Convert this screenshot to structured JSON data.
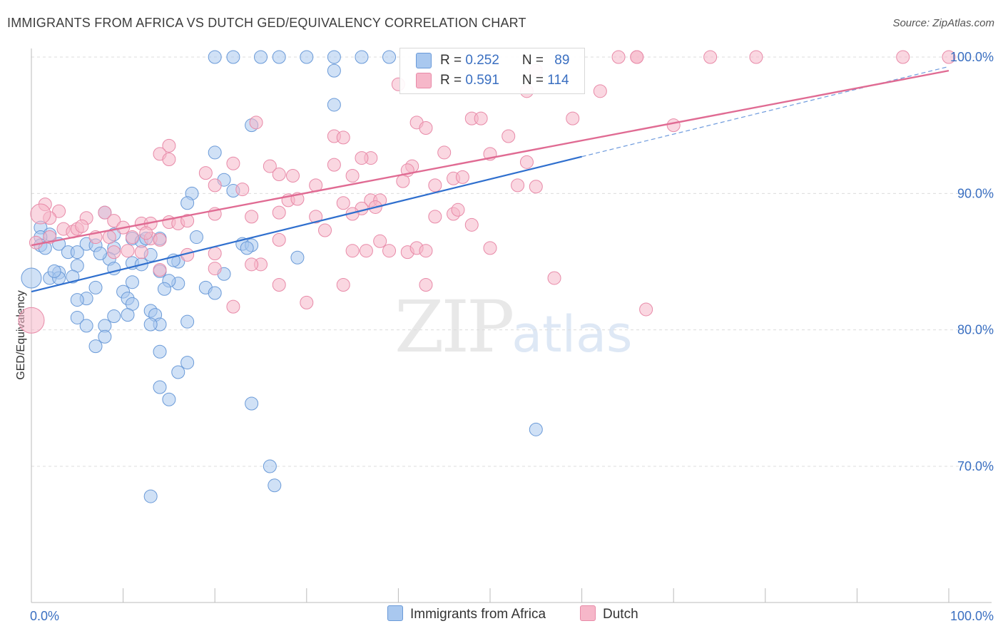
{
  "header": {
    "title": "IMMIGRANTS FROM AFRICA VS DUTCH GED/EQUIVALENCY CORRELATION CHART",
    "source": "Source: ZipAtlas.com"
  },
  "watermark": {
    "zip": "ZIP",
    "atlas": "atlas"
  },
  "legend": {
    "rows": [
      {
        "r_label": "R = ",
        "r_value": "0.252",
        "n_label": "N = ",
        "n_value": "89"
      },
      {
        "r_label": "R = ",
        "r_value": "0.591",
        "n_label": "N = ",
        "n_value": "114"
      }
    ]
  },
  "bottom_legend": {
    "items": [
      {
        "label": "Immigrants from Africa"
      },
      {
        "label": "Dutch"
      }
    ]
  },
  "colors": {
    "blue_fill": "#a9c8ef",
    "blue_stroke": "#6a9ad8",
    "blue_line": "#2f6fce",
    "pink_fill": "#f6b7c9",
    "pink_stroke": "#e88aa8",
    "pink_line": "#e06b93",
    "tick_label": "#3a6fc1",
    "grid": "#dcdcdc"
  },
  "chart_data": {
    "type": "scatter",
    "title": "IMMIGRANTS FROM AFRICA VS DUTCH GED/EQUIVALENCY CORRELATION CHART",
    "xlabel": "",
    "ylabel": "GED/Equivalency",
    "xlim": [
      0,
      100
    ],
    "ylim": [
      61,
      101
    ],
    "x_tick_labels": [
      "0.0%",
      "100.0%"
    ],
    "y_ticks": [
      70,
      80,
      90,
      100
    ],
    "y_tick_labels": [
      "70.0%",
      "80.0%",
      "90.0%",
      "100.0%"
    ],
    "grid": "horizontal dashed",
    "legend_position": "top-center",
    "series": [
      {
        "name": "Immigrants from Africa",
        "r": 0.252,
        "n": 89,
        "trend": {
          "x0": 0,
          "y0": 82.8,
          "x1": 60,
          "y1": 92.7,
          "dashed_to_x": 100,
          "dashed_to_y": 99.3
        },
        "points": [
          [
            20,
            100
          ],
          [
            22,
            100
          ],
          [
            25,
            100
          ],
          [
            30,
            100
          ],
          [
            33,
            100
          ],
          [
            36,
            100
          ],
          [
            39,
            100
          ],
          [
            27,
            100
          ],
          [
            33,
            99
          ],
          [
            33,
            96.5
          ],
          [
            24,
            95
          ],
          [
            20,
            93
          ],
          [
            21,
            91
          ],
          [
            22,
            90.2
          ],
          [
            17.5,
            90
          ],
          [
            17,
            89.3
          ],
          [
            8,
            88.6
          ],
          [
            1,
            87.5
          ],
          [
            2,
            87
          ],
          [
            1,
            86.8
          ],
          [
            9,
            87
          ],
          [
            11,
            86.7
          ],
          [
            12,
            86.5
          ],
          [
            14,
            86.7
          ],
          [
            3,
            86.3
          ],
          [
            6,
            86.3
          ],
          [
            1,
            86.2
          ],
          [
            4,
            85.7
          ],
          [
            5,
            85.7
          ],
          [
            7,
            86.2
          ],
          [
            9,
            86
          ],
          [
            13,
            85.5
          ],
          [
            8.5,
            85.2
          ],
          [
            16,
            85
          ],
          [
            23,
            86.3
          ],
          [
            24,
            86.2
          ],
          [
            29,
            85.3
          ],
          [
            11,
            84.9
          ],
          [
            12,
            84.8
          ],
          [
            5,
            84.7
          ],
          [
            9,
            84.5
          ],
          [
            14,
            84.3
          ],
          [
            3,
            84.2
          ],
          [
            2,
            83.8
          ],
          [
            0,
            83.8
          ],
          [
            16,
            83.4
          ],
          [
            15,
            83.6
          ],
          [
            11,
            83.5
          ],
          [
            7,
            83.1
          ],
          [
            14.5,
            83
          ],
          [
            19,
            83.1
          ],
          [
            21,
            84.1
          ],
          [
            20,
            82.7
          ],
          [
            10,
            82.8
          ],
          [
            6,
            82.3
          ],
          [
            5,
            82.2
          ],
          [
            10.5,
            82.3
          ],
          [
            11,
            81.9
          ],
          [
            13,
            81.4
          ],
          [
            13.5,
            81.1
          ],
          [
            10.5,
            81.1
          ],
          [
            9,
            81
          ],
          [
            5,
            80.9
          ],
          [
            17,
            80.6
          ],
          [
            8,
            80.3
          ],
          [
            6,
            80.3
          ],
          [
            14,
            80.4
          ],
          [
            13,
            80.4
          ],
          [
            8,
            79.5
          ],
          [
            7,
            78.8
          ],
          [
            14,
            78.4
          ],
          [
            17,
            77.6
          ],
          [
            16,
            76.9
          ],
          [
            14,
            75.8
          ],
          [
            15,
            74.9
          ],
          [
            24,
            74.6
          ],
          [
            55,
            72.7
          ],
          [
            26,
            70
          ],
          [
            26.5,
            68.6
          ],
          [
            13,
            67.8
          ],
          [
            3,
            83.8
          ],
          [
            1.5,
            86
          ],
          [
            2.5,
            84.3
          ],
          [
            18,
            86.8
          ],
          [
            12.5,
            86.7
          ],
          [
            7.5,
            85.6
          ],
          [
            4.5,
            83.9
          ],
          [
            15.5,
            85.1
          ],
          [
            23.5,
            86
          ]
        ]
      },
      {
        "name": "Dutch",
        "r": 0.591,
        "n": 114,
        "trend": {
          "x0": 0,
          "y0": 86.2,
          "x1": 100,
          "y1": 99
        },
        "points": [
          [
            64,
            100
          ],
          [
            66,
            100
          ],
          [
            74,
            100
          ],
          [
            79,
            100
          ],
          [
            95,
            100
          ],
          [
            100,
            100
          ],
          [
            66,
            100
          ],
          [
            55,
            99
          ],
          [
            40,
            98
          ],
          [
            62,
            97.5
          ],
          [
            54,
            97.5
          ],
          [
            48,
            95.5
          ],
          [
            49,
            95.5
          ],
          [
            59,
            95.5
          ],
          [
            42,
            95.2
          ],
          [
            24.5,
            95.2
          ],
          [
            43,
            94.8
          ],
          [
            70,
            95
          ],
          [
            33,
            94.2
          ],
          [
            52,
            94.2
          ],
          [
            34,
            94.1
          ],
          [
            15,
            93.5
          ],
          [
            14,
            92.9
          ],
          [
            45,
            93
          ],
          [
            50,
            92.9
          ],
          [
            37,
            92.6
          ],
          [
            36,
            92.6
          ],
          [
            15,
            92.5
          ],
          [
            22,
            92.2
          ],
          [
            26,
            92
          ],
          [
            33,
            92.1
          ],
          [
            41.5,
            92
          ],
          [
            41,
            91.7
          ],
          [
            54,
            92.3
          ],
          [
            19,
            91.5
          ],
          [
            27,
            91.4
          ],
          [
            35,
            91.3
          ],
          [
            28.5,
            91.3
          ],
          [
            46,
            91.1
          ],
          [
            40.5,
            90.9
          ],
          [
            47,
            91.2
          ],
          [
            20,
            90.6
          ],
          [
            31,
            90.6
          ],
          [
            44,
            90.6
          ],
          [
            53,
            90.6
          ],
          [
            55,
            90.5
          ],
          [
            23,
            90.3
          ],
          [
            28,
            89.5
          ],
          [
            29,
            89.6
          ],
          [
            37,
            89.5
          ],
          [
            38,
            89.5
          ],
          [
            34,
            89.3
          ],
          [
            37.5,
            89
          ],
          [
            36,
            88.9
          ],
          [
            1.5,
            89.2
          ],
          [
            3,
            88.7
          ],
          [
            8,
            88.6
          ],
          [
            2,
            88.2
          ],
          [
            6,
            88.2
          ],
          [
            9,
            88
          ],
          [
            12,
            87.8
          ],
          [
            13,
            87.8
          ],
          [
            15,
            87.9
          ],
          [
            16,
            87.8
          ],
          [
            10,
            87.5
          ],
          [
            3.5,
            87.4
          ],
          [
            4.5,
            87.2
          ],
          [
            5,
            87.4
          ],
          [
            17,
            88
          ],
          [
            20,
            88.5
          ],
          [
            24,
            88.3
          ],
          [
            27,
            88.6
          ],
          [
            31,
            88.3
          ],
          [
            35,
            88.5
          ],
          [
            44,
            88.3
          ],
          [
            46,
            88.5
          ],
          [
            48,
            87.7
          ],
          [
            2,
            86.8
          ],
          [
            7,
            86.8
          ],
          [
            8.5,
            86.8
          ],
          [
            11,
            86.8
          ],
          [
            13,
            86.7
          ],
          [
            14,
            86.6
          ],
          [
            12.5,
            87.1
          ],
          [
            27,
            86.6
          ],
          [
            38,
            86.5
          ],
          [
            39,
            85.8
          ],
          [
            35,
            85.8
          ],
          [
            41,
            85.7
          ],
          [
            42,
            86
          ],
          [
            43,
            85.8
          ],
          [
            50,
            86
          ],
          [
            10.5,
            85.8
          ],
          [
            12,
            85.7
          ],
          [
            9,
            85.7
          ],
          [
            17,
            85.5
          ],
          [
            20,
            85.6
          ],
          [
            25,
            84.8
          ],
          [
            24,
            84.8
          ],
          [
            14,
            84.4
          ],
          [
            20,
            84.5
          ],
          [
            27,
            83.3
          ],
          [
            34,
            83.3
          ],
          [
            43,
            83.3
          ],
          [
            30,
            82
          ],
          [
            22,
            81.7
          ],
          [
            67,
            81.5
          ],
          [
            57,
            83.8
          ],
          [
            0,
            80.7
          ],
          [
            1,
            88.5
          ],
          [
            32,
            87.3
          ],
          [
            46.5,
            88.8
          ],
          [
            5.5,
            87.6
          ],
          [
            0.5,
            86.4
          ],
          [
            36.5,
            85.8
          ]
        ]
      }
    ]
  }
}
